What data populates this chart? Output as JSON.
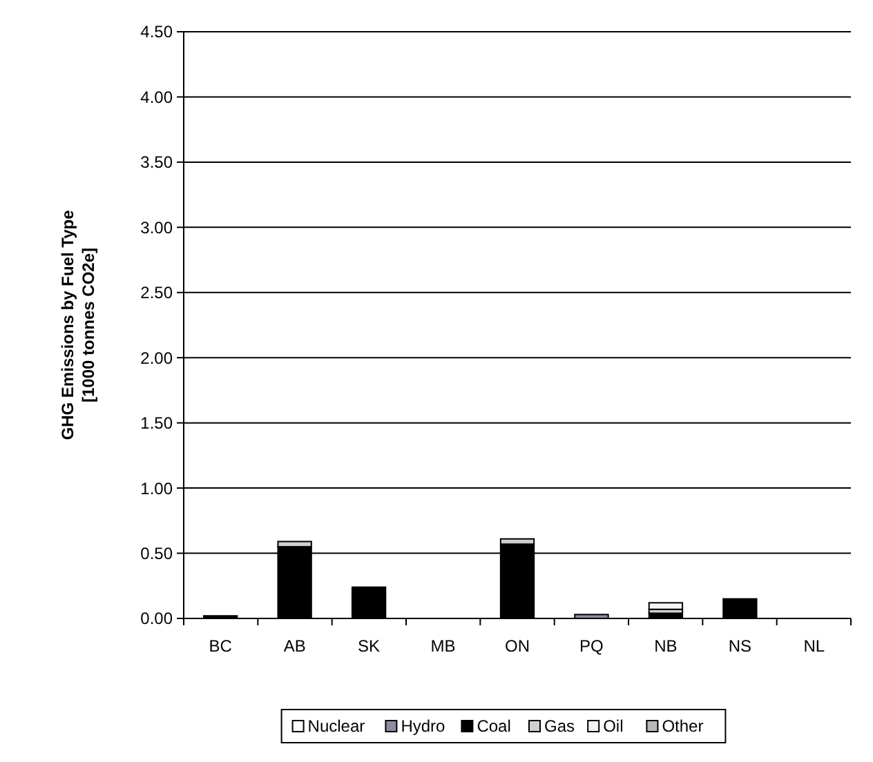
{
  "chart_data": {
    "type": "bar",
    "stacked": true,
    "ylabel": "GHG Emissions by Fuel Type\n[1000 tonnes CO2e]",
    "categories": [
      "BC",
      "AB",
      "SK",
      "MB",
      "ON",
      "PQ",
      "NB",
      "NS",
      "NL"
    ],
    "series": [
      {
        "name": "Nuclear",
        "color": "#ffffff",
        "values": [
          0,
          0,
          0,
          0,
          0,
          0,
          0,
          0,
          0
        ]
      },
      {
        "name": "Hydro",
        "color": "#8c8ca0",
        "values": [
          0,
          0,
          0,
          0,
          0,
          0.03,
          0,
          0,
          0
        ]
      },
      {
        "name": "Coal",
        "color": "#000000",
        "values": [
          0.02,
          0.55,
          0.24,
          0,
          0.57,
          0,
          0.04,
          0.15,
          0
        ]
      },
      {
        "name": "Gas",
        "color": "#d0d0d0",
        "values": [
          0,
          0.04,
          0,
          0,
          0.04,
          0,
          0.03,
          0,
          0
        ]
      },
      {
        "name": "Oil",
        "color": "#f4f4f4",
        "values": [
          0,
          0,
          0,
          0,
          0,
          0,
          0.05,
          0,
          0
        ]
      },
      {
        "name": "Other",
        "color": "#b8b8b8",
        "values": [
          0,
          0,
          0,
          0,
          0,
          0,
          0,
          0,
          0
        ]
      }
    ],
    "ylim": [
      0,
      4.5
    ],
    "yticks": [
      {
        "value": 0,
        "label": "0.00"
      },
      {
        "value": 0.5,
        "label": "0.50"
      },
      {
        "value": 1,
        "label": "1.00"
      },
      {
        "value": 1.5,
        "label": "1.50"
      },
      {
        "value": 2,
        "label": "2.00"
      },
      {
        "value": 2.5,
        "label": "2.50"
      },
      {
        "value": 3,
        "label": "3.00"
      },
      {
        "value": 3.5,
        "label": "3.50"
      },
      {
        "value": 4,
        "label": "4.00"
      },
      {
        "value": 4.5,
        "label": "4.50"
      }
    ],
    "grid": "y",
    "legend": "bottom"
  }
}
